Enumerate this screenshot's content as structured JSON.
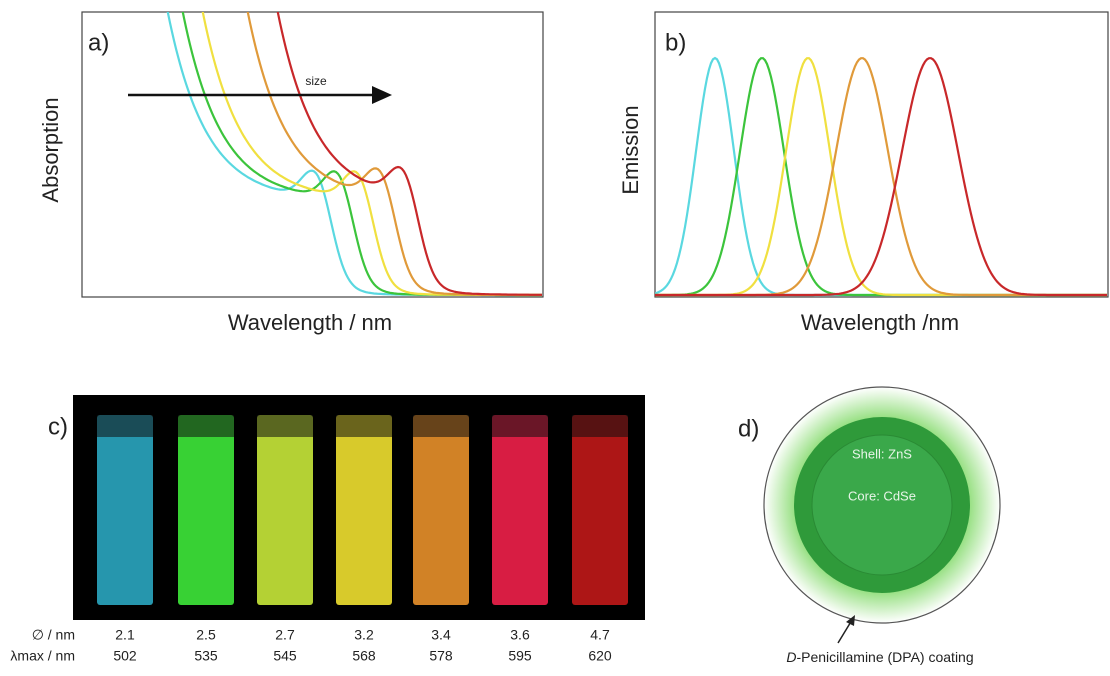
{
  "panels": {
    "a": {
      "label": "a)",
      "y_axis_label": "Absorption",
      "x_axis_label": "Wavelength / nm",
      "arrow_label": "size"
    },
    "b": {
      "label": "b)",
      "y_axis_label": "Emission",
      "x_axis_label": "Wavelength /nm"
    },
    "c": {
      "label": "c)",
      "table": {
        "row_labels": [
          "∅ / nm",
          "λmax / nm"
        ],
        "rows": [
          [
            "2.1",
            "2.5",
            "2.7",
            "3.2",
            "3.4",
            "3.6",
            "4.7"
          ],
          [
            "502",
            "535",
            "545",
            "568",
            "578",
            "595",
            "620"
          ]
        ]
      }
    },
    "d": {
      "label": "d)",
      "shell_label": "Shell: ZnS",
      "core_label": "Core: CdSe",
      "caption_italic": "D",
      "caption": "-Penicillamine (DPA) coating"
    }
  }
}
